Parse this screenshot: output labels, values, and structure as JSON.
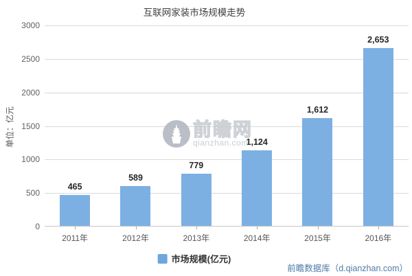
{
  "title": "互联网家装市场规模走势",
  "y_axis_title": "单位：亿元",
  "legend": {
    "label": "市场规模(亿元)"
  },
  "watermark": {
    "brand": "前瞻网",
    "domain": "qianzhan.com"
  },
  "credit": "前瞻数据库（d.qianzhan.com）",
  "colors": {
    "bar": "#7cb0e2",
    "legend_swatch": "#6ea6dd",
    "grid": "#d9d9d9",
    "axis": "#c6c6c6",
    "credit_text": "#4e7ba8"
  },
  "chart_data": {
    "type": "bar",
    "title": "互联网家装市场规模走势",
    "categories": [
      "2011年",
      "2012年",
      "2013年",
      "2014年",
      "2015年",
      "2016年"
    ],
    "values": [
      465,
      589,
      779,
      1124,
      1612,
      2653
    ],
    "value_labels": [
      "465",
      "589",
      "779",
      "1,124",
      "1,612",
      "2,653"
    ],
    "xlabel": "",
    "ylabel": "单位：亿元",
    "ylim": [
      0,
      3000
    ],
    "yticks": [
      0,
      500,
      1000,
      1500,
      2000,
      2500,
      3000
    ],
    "legend": [
      "市场规模(亿元)"
    ],
    "legend_position": "bottom",
    "grid": true,
    "bar_color": "#7cb0e2"
  }
}
